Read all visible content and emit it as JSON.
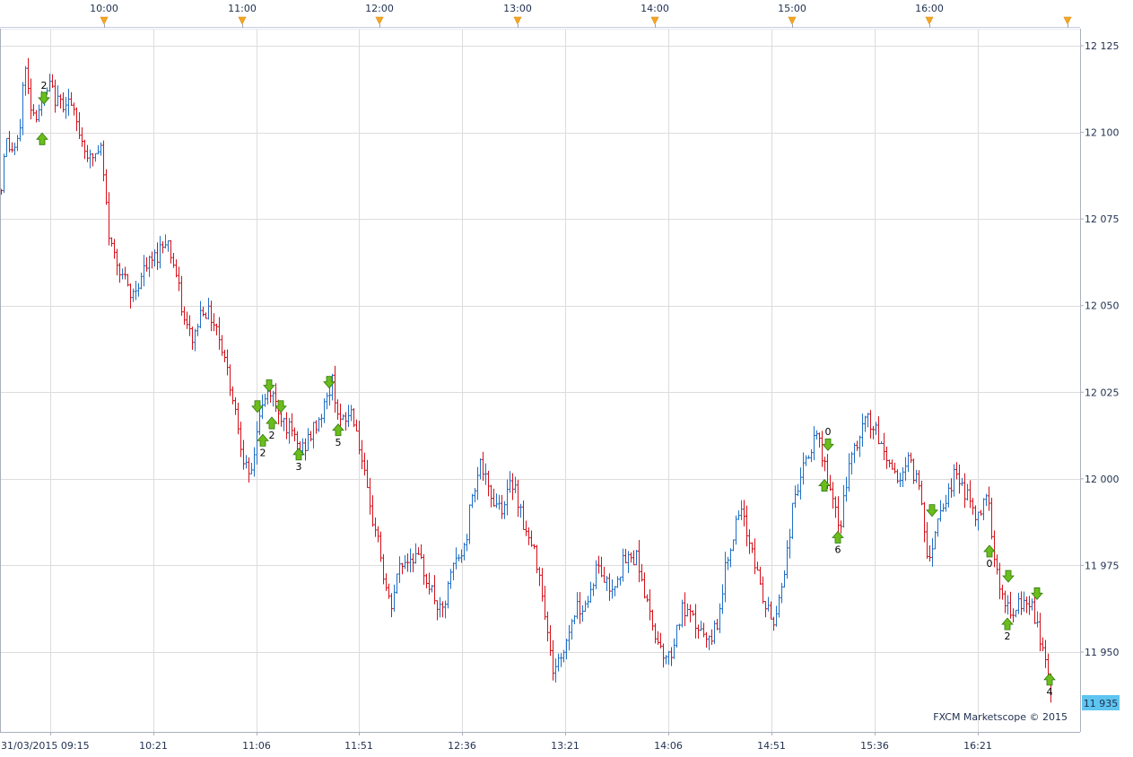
{
  "chart_data": {
    "type": "bar",
    "subtype": "ohlc",
    "date": "31/03/2015",
    "instrument_last_price": "11 935",
    "y_axis": {
      "min": 11930,
      "max": 12130,
      "ticks": [
        "12 125",
        "12 100",
        "12 075",
        "12 050",
        "12 025",
        "12 000",
        "11 975",
        "11 950"
      ]
    },
    "x_axis": {
      "ticks": [
        "31/03/2015 09:15",
        "10:21",
        "11:06",
        "11:51",
        "12:36",
        "13:21",
        "14:06",
        "14:51",
        "15:36",
        "16:21"
      ]
    },
    "session_markers": [
      "10:00",
      "11:00",
      "12:00",
      "13:00",
      "14:00",
      "15:00",
      "16:00"
    ],
    "grid": true,
    "watermark": "FXCM Marketscope © 2015",
    "anchors": [
      [
        0,
        12080
      ],
      [
        5,
        12098
      ],
      [
        12,
        12095
      ],
      [
        20,
        12096
      ],
      [
        27,
        12120
      ],
      [
        32,
        12110
      ],
      [
        38,
        12105
      ],
      [
        45,
        12108
      ],
      [
        55,
        12113
      ],
      [
        65,
        12108
      ],
      [
        75,
        12110
      ],
      [
        88,
        12100
      ],
      [
        100,
        12092
      ],
      [
        112,
        12095
      ],
      [
        122,
        12068
      ],
      [
        135,
        12060
      ],
      [
        145,
        12052
      ],
      [
        160,
        12060
      ],
      [
        175,
        12065
      ],
      [
        185,
        12070
      ],
      [
        195,
        12060
      ],
      [
        205,
        12045
      ],
      [
        215,
        12040
      ],
      [
        225,
        12050
      ],
      [
        240,
        12045
      ],
      [
        250,
        12035
      ],
      [
        262,
        12020
      ],
      [
        272,
        12005
      ],
      [
        278,
        11998
      ],
      [
        288,
        12018
      ],
      [
        300,
        12026
      ],
      [
        310,
        12020
      ],
      [
        320,
        12015
      ],
      [
        335,
        12008
      ],
      [
        345,
        12012
      ],
      [
        360,
        12020
      ],
      [
        370,
        12028
      ],
      [
        380,
        12015
      ],
      [
        392,
        12020
      ],
      [
        400,
        12010
      ],
      [
        412,
        11990
      ],
      [
        420,
        11985
      ],
      [
        428,
        11970
      ],
      [
        435,
        11962
      ],
      [
        445,
        11975
      ],
      [
        460,
        11978
      ],
      [
        470,
        11975
      ],
      [
        480,
        11968
      ],
      [
        492,
        11960
      ],
      [
        505,
        11975
      ],
      [
        518,
        11980
      ],
      [
        525,
        11995
      ],
      [
        535,
        12005
      ],
      [
        545,
        11995
      ],
      [
        560,
        11992
      ],
      [
        572,
        12000
      ],
      [
        585,
        11985
      ],
      [
        600,
        11975
      ],
      [
        607,
        11962
      ],
      [
        615,
        11945
      ],
      [
        625,
        11948
      ],
      [
        640,
        11962
      ],
      [
        655,
        11965
      ],
      [
        665,
        11975
      ],
      [
        680,
        11968
      ],
      [
        695,
        11976
      ],
      [
        710,
        11978
      ],
      [
        722,
        11962
      ],
      [
        735,
        11952
      ],
      [
        745,
        11948
      ],
      [
        760,
        11962
      ],
      [
        775,
        11958
      ],
      [
        790,
        11952
      ],
      [
        800,
        11960
      ],
      [
        812,
        11980
      ],
      [
        825,
        11990
      ],
      [
        838,
        11980
      ],
      [
        850,
        11965
      ],
      [
        862,
        11958
      ],
      [
        875,
        11975
      ],
      [
        885,
        11995
      ],
      [
        898,
        12005
      ],
      [
        910,
        12012
      ],
      [
        918,
        12005
      ],
      [
        926,
        11995
      ],
      [
        935,
        11985
      ],
      [
        945,
        12002
      ],
      [
        955,
        12010
      ],
      [
        966,
        12018
      ],
      [
        978,
        12012
      ],
      [
        990,
        12005
      ],
      [
        1000,
        12000
      ],
      [
        1012,
        12005
      ],
      [
        1025,
        11998
      ],
      [
        1035,
        11975
      ],
      [
        1045,
        11990
      ],
      [
        1055,
        11995
      ],
      [
        1065,
        12002
      ],
      [
        1078,
        11995
      ],
      [
        1090,
        11988
      ],
      [
        1100,
        11998
      ],
      [
        1108,
        11978
      ],
      [
        1118,
        11965
      ],
      [
        1128,
        11960
      ],
      [
        1140,
        11965
      ],
      [
        1150,
        11962
      ],
      [
        1158,
        11955
      ],
      [
        1165,
        11948
      ],
      [
        1172,
        11936
      ]
    ],
    "signals": [
      {
        "x": 49,
        "price": 12110,
        "dir": "down",
        "label": "2"
      },
      {
        "x": 47,
        "price": 12098,
        "dir": "up",
        "label": ""
      },
      {
        "x": 287,
        "price": 12021,
        "dir": "down",
        "label": ""
      },
      {
        "x": 300,
        "price": 12027,
        "dir": "down",
        "label": ""
      },
      {
        "x": 313,
        "price": 12021,
        "dir": "down",
        "label": ""
      },
      {
        "x": 293,
        "price": 12011,
        "dir": "up",
        "label": "2"
      },
      {
        "x": 303,
        "price": 12016,
        "dir": "up",
        "label": "2"
      },
      {
        "x": 333,
        "price": 12007,
        "dir": "up",
        "label": "3"
      },
      {
        "x": 367,
        "price": 12028,
        "dir": "down",
        "label": ""
      },
      {
        "x": 377,
        "price": 12014,
        "dir": "up",
        "label": "5"
      },
      {
        "x": 923,
        "price": 12010,
        "dir": "down",
        "label": "0"
      },
      {
        "x": 919,
        "price": 11998,
        "dir": "up",
        "label": ""
      },
      {
        "x": 934,
        "price": 11983,
        "dir": "up",
        "label": "6"
      },
      {
        "x": 1039,
        "price": 11991,
        "dir": "down",
        "label": ""
      },
      {
        "x": 1103,
        "price": 11979,
        "dir": "up",
        "label": "0"
      },
      {
        "x": 1124,
        "price": 11972,
        "dir": "down",
        "label": ""
      },
      {
        "x": 1123,
        "price": 11958,
        "dir": "up",
        "label": "2"
      },
      {
        "x": 1156,
        "price": 11967,
        "dir": "down",
        "label": ""
      },
      {
        "x": 1170,
        "price": 11942,
        "dir": "up",
        "label": "4"
      }
    ],
    "colors": {
      "up_bar": "#1f6fc5",
      "down_bar": "#d4101a",
      "grid": "#dcdcdc",
      "axis": "#a9b0bd",
      "top_band": "#c5cde0",
      "last_price_bg": "#5ec5f0",
      "arrow_fill": "#6cbd1c",
      "arrow_stroke": "#2e7a10",
      "marker": "#f5a623"
    }
  }
}
